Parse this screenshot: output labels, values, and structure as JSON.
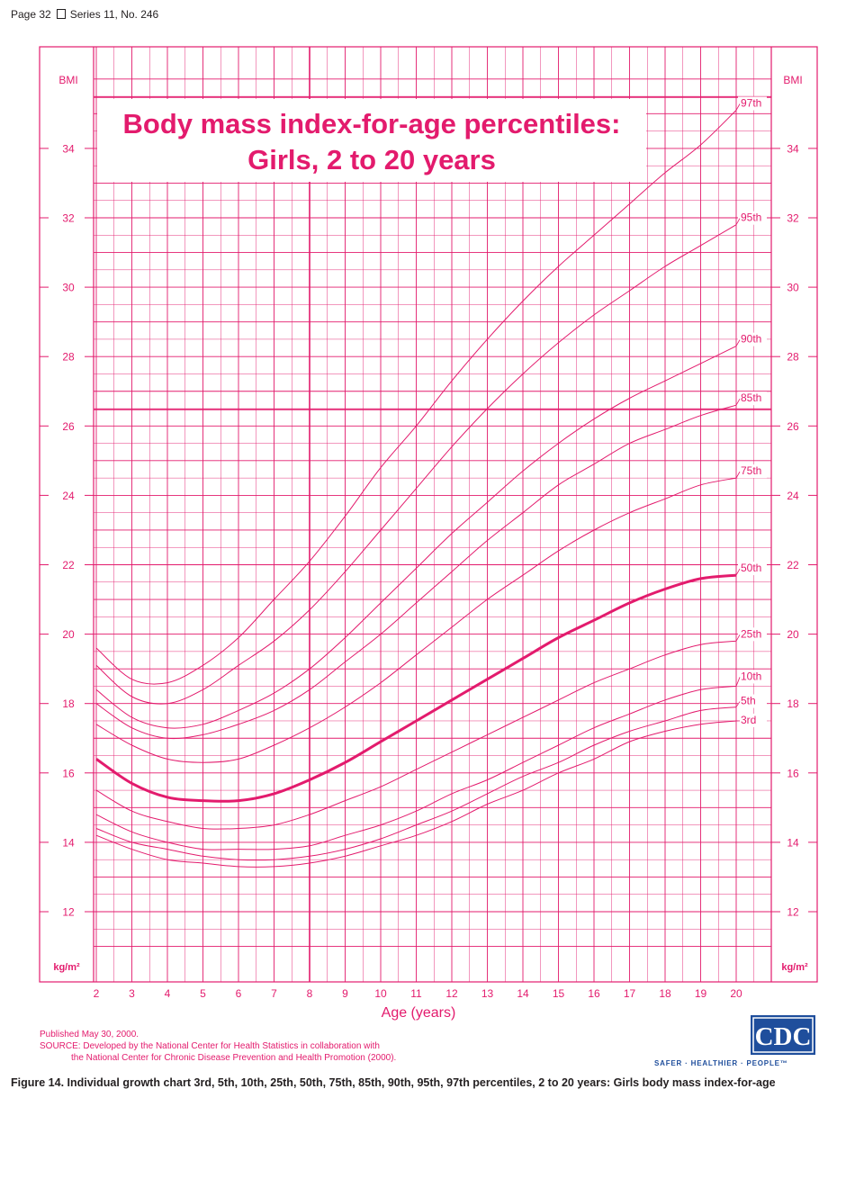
{
  "page_header": {
    "page": "Page 32",
    "series": "Series 11, No. 246"
  },
  "colors": {
    "accent": "#e31b6d",
    "grid": "#e31b6d",
    "text": "#231f20",
    "cdc_blue": "#1f4e9c"
  },
  "chart_data": {
    "type": "line",
    "title_line1": "Body mass index-for-age percentiles:",
    "title_line2": "Girls, 2 to 20 years",
    "xlabel": "Age (years)",
    "ylabel_top": "BMI",
    "ylabel_bottom": "kg/m²",
    "xlim": [
      2,
      20
    ],
    "ylim": [
      11,
      36
    ],
    "x_ticks": [
      "2",
      "3",
      "4",
      "5",
      "6",
      "7",
      "8",
      "9",
      "10",
      "11",
      "12",
      "13",
      "14",
      "15",
      "16",
      "17",
      "18",
      "19",
      "20"
    ],
    "y_ticks": [
      "12",
      "14",
      "16",
      "18",
      "20",
      "22",
      "24",
      "26",
      "28",
      "30",
      "32",
      "34"
    ],
    "x": [
      2,
      3,
      4,
      5,
      6,
      7,
      8,
      9,
      10,
      11,
      12,
      13,
      14,
      15,
      16,
      17,
      18,
      19,
      20
    ],
    "series": [
      {
        "name": "97th",
        "label": "97th",
        "bold": false,
        "values": [
          19.6,
          18.7,
          18.6,
          19.1,
          19.9,
          21.0,
          22.1,
          23.4,
          24.8,
          26.0,
          27.3,
          28.5,
          29.6,
          30.6,
          31.5,
          32.4,
          33.3,
          34.1,
          35.1
        ]
      },
      {
        "name": "95th",
        "label": "95th",
        "bold": false,
        "values": [
          19.1,
          18.2,
          18.0,
          18.4,
          19.1,
          19.8,
          20.7,
          21.8,
          23.0,
          24.2,
          25.4,
          26.5,
          27.5,
          28.4,
          29.2,
          29.9,
          30.6,
          31.2,
          31.8
        ]
      },
      {
        "name": "90th",
        "label": "90th",
        "bold": false,
        "values": [
          18.4,
          17.6,
          17.3,
          17.4,
          17.8,
          18.3,
          19.0,
          19.9,
          20.9,
          21.9,
          22.9,
          23.8,
          24.7,
          25.5,
          26.2,
          26.8,
          27.3,
          27.8,
          28.3
        ]
      },
      {
        "name": "85th",
        "label": "85th",
        "bold": false,
        "values": [
          18.0,
          17.3,
          17.0,
          17.1,
          17.4,
          17.8,
          18.4,
          19.2,
          20.0,
          20.9,
          21.8,
          22.7,
          23.5,
          24.3,
          24.9,
          25.5,
          25.9,
          26.3,
          26.6
        ]
      },
      {
        "name": "75th",
        "label": "75th",
        "bold": false,
        "values": [
          17.4,
          16.8,
          16.4,
          16.3,
          16.4,
          16.8,
          17.3,
          17.9,
          18.6,
          19.4,
          20.2,
          21.0,
          21.7,
          22.4,
          23.0,
          23.5,
          23.9,
          24.3,
          24.5
        ]
      },
      {
        "name": "50th",
        "label": "50th",
        "bold": true,
        "values": [
          16.4,
          15.7,
          15.3,
          15.2,
          15.2,
          15.4,
          15.8,
          16.3,
          16.9,
          17.5,
          18.1,
          18.7,
          19.3,
          19.9,
          20.4,
          20.9,
          21.3,
          21.6,
          21.7
        ]
      },
      {
        "name": "25th",
        "label": "25th",
        "bold": false,
        "values": [
          15.5,
          14.9,
          14.6,
          14.4,
          14.4,
          14.5,
          14.8,
          15.2,
          15.6,
          16.1,
          16.6,
          17.1,
          17.6,
          18.1,
          18.6,
          19.0,
          19.4,
          19.7,
          19.8
        ]
      },
      {
        "name": "10th",
        "label": "10th",
        "bold": false,
        "values": [
          14.8,
          14.3,
          14.0,
          13.8,
          13.8,
          13.8,
          13.9,
          14.2,
          14.5,
          14.9,
          15.4,
          15.8,
          16.3,
          16.8,
          17.3,
          17.7,
          18.1,
          18.4,
          18.5
        ]
      },
      {
        "name": "5th",
        "label": "5th",
        "bold": false,
        "values": [
          14.4,
          14.0,
          13.8,
          13.6,
          13.5,
          13.5,
          13.6,
          13.8,
          14.1,
          14.5,
          14.9,
          15.4,
          15.9,
          16.3,
          16.8,
          17.2,
          17.5,
          17.8,
          17.9
        ]
      },
      {
        "name": "3rd",
        "label": "3rd",
        "bold": false,
        "values": [
          14.2,
          13.8,
          13.5,
          13.4,
          13.3,
          13.3,
          13.4,
          13.6,
          13.9,
          14.2,
          14.6,
          15.1,
          15.5,
          16.0,
          16.4,
          16.9,
          17.2,
          17.4,
          17.5
        ]
      }
    ]
  },
  "footer": {
    "published": "Published May 30, 2000.",
    "source_prefix": "SOURCE:",
    "source_line1": "Developed by the National Center for Health Statistics in collaboration with",
    "source_line2": "the National Center for Chronic Disease Prevention and Health Promotion (2000).",
    "logo": "CDC",
    "tagline": "SAFER · HEALTHIER · PEOPLE™"
  },
  "caption": "Figure 14. Individual growth chart 3rd, 5th, 10th, 25th, 50th, 75th, 85th, 90th, 95th, 97th percentiles, 2 to 20 years: Girls body mass index-for-age"
}
